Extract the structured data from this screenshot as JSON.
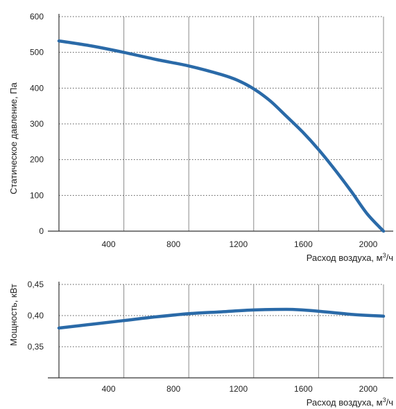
{
  "chart_data": [
    {
      "type": "line",
      "title": "",
      "xlabel": "Расход воздуха, м",
      "xlabel_sup": "3",
      "xlabel_suffix": "/ч",
      "ylabel": "Статическое давление, Па",
      "xlim": [
        0,
        2000
      ],
      "ylim": [
        0,
        600
      ],
      "x_ticks": [
        "400",
        "800",
        "1200",
        "1600",
        "2000"
      ],
      "y_ticks": [
        "0",
        "100",
        "200",
        "300",
        "400",
        "500",
        "600"
      ],
      "grid": true,
      "color": "#2a6aa8",
      "series": [
        {
          "x": [
            0,
            200,
            400,
            600,
            800,
            1000,
            1100,
            1200,
            1300,
            1400,
            1500,
            1600,
            1700,
            1800,
            1900,
            2000
          ],
          "values": [
            532,
            518,
            500,
            480,
            462,
            438,
            422,
            398,
            365,
            322,
            278,
            228,
            172,
            112,
            48,
            0
          ]
        }
      ]
    },
    {
      "type": "line",
      "title": "",
      "xlabel": "Расход воздуха, м",
      "xlabel_sup": "3",
      "xlabel_suffix": "/ч",
      "ylabel": "Мощность, кВт",
      "xlim": [
        0,
        2000
      ],
      "ylim": [
        0.3,
        0.45
      ],
      "x_ticks": [
        "400",
        "800",
        "1200",
        "1600",
        "2000"
      ],
      "y_ticks": [
        "0,35",
        "0,40",
        "0,45"
      ],
      "grid": true,
      "color": "#2a6aa8",
      "series": [
        {
          "x": [
            0,
            200,
            400,
            600,
            800,
            1000,
            1200,
            1400,
            1500,
            1600,
            1800,
            2000
          ],
          "values": [
            0.38,
            0.386,
            0.392,
            0.398,
            0.403,
            0.406,
            0.409,
            0.41,
            0.409,
            0.407,
            0.402,
            0.399
          ]
        }
      ]
    }
  ]
}
